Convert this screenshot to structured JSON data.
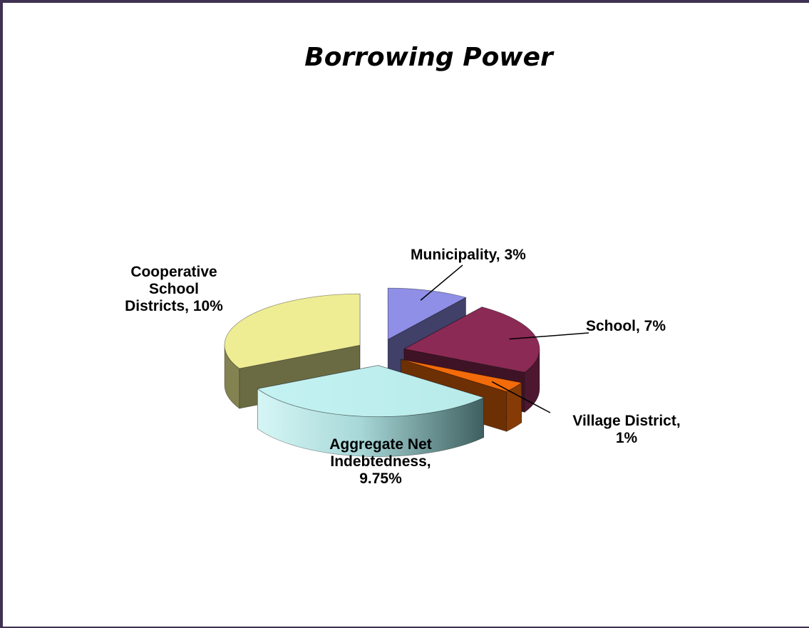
{
  "chart_data": {
    "type": "pie",
    "style": "3d-exploded",
    "title": "Borrowing Power",
    "slices": [
      {
        "name": "Municipality",
        "value": 3,
        "label": "Municipality, 3%",
        "color": "#8f8fe8"
      },
      {
        "name": "School",
        "value": 7,
        "label": "School, 7%",
        "color": "#8b2a55"
      },
      {
        "name": "Village District",
        "value": 1,
        "label": "Village District, 1%",
        "color": "#f36b0a"
      },
      {
        "name": "Aggregate Net Indebtedness",
        "value": 9.75,
        "label": "Aggregate Net Indebtedness, 9.75%",
        "color": "#bff0f0"
      },
      {
        "name": "Cooperative School Districts",
        "value": 10,
        "label": "Cooperative School Districts, 10%",
        "color": "#eeed94"
      }
    ],
    "legend": "none"
  }
}
